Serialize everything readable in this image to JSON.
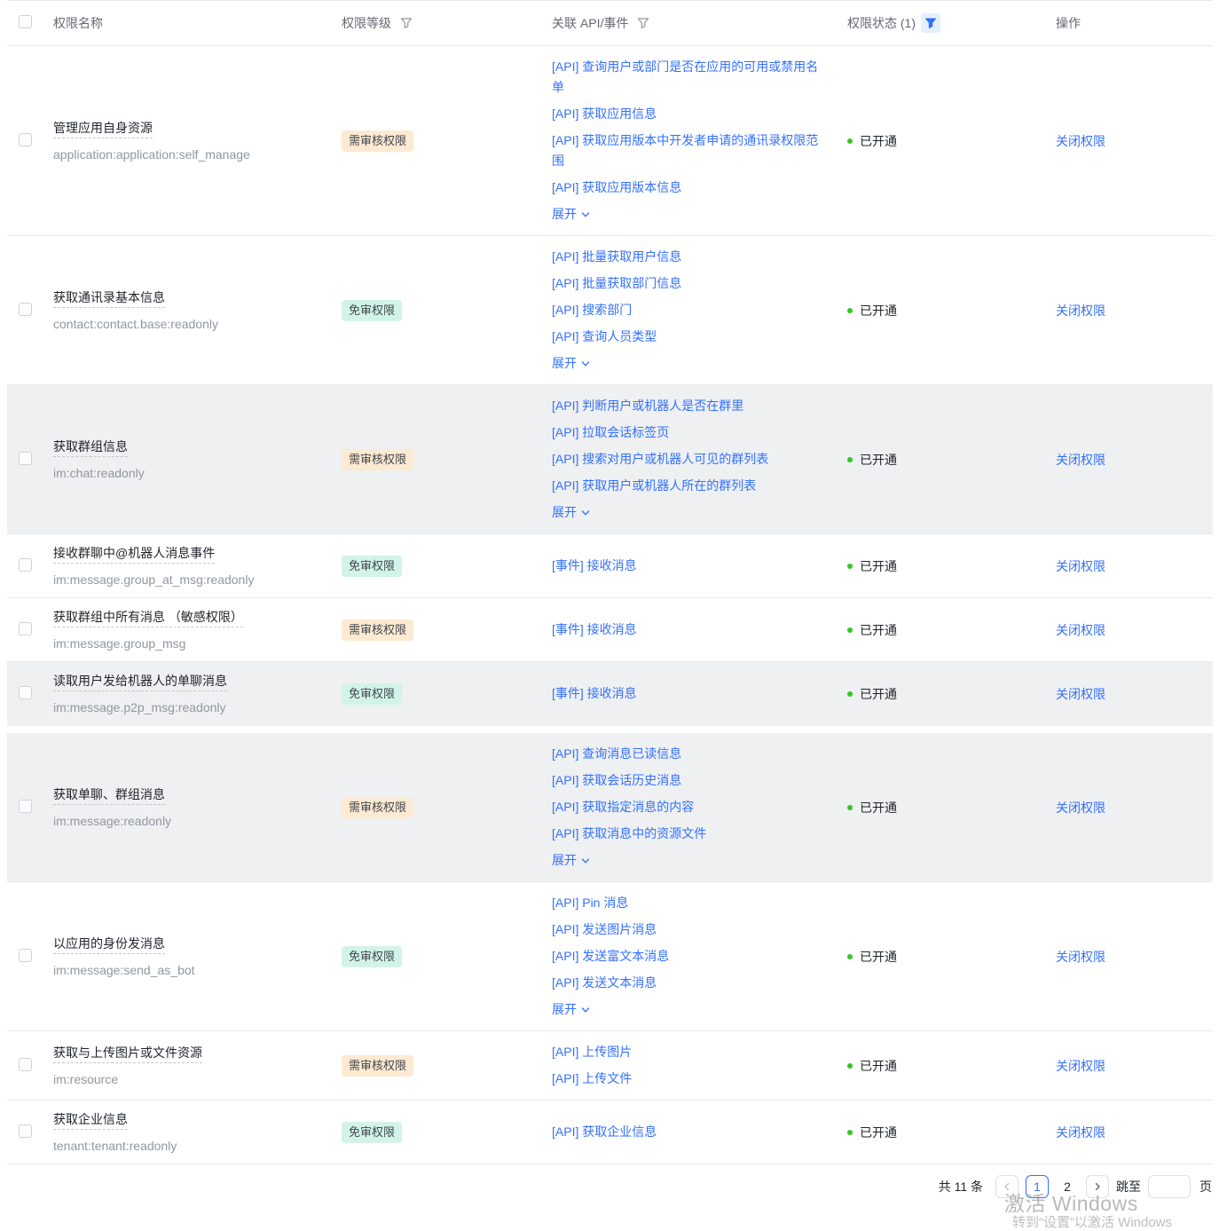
{
  "colors": {
    "accent": "#3370ff",
    "status_open_green": "#34c724",
    "badge": {
      "review": "#fdead2",
      "free": "#d2f4e8"
    },
    "shaded_row_bg": "#eef0f2"
  },
  "icons": {
    "filter": "funnel-icon",
    "expand": "chevron-down-icon",
    "prev": "chevron-left-icon",
    "next": "chevron-right-icon"
  },
  "table": {
    "headers": {
      "name": "权限名称",
      "level": "权限等级",
      "api": "关联 API/事件",
      "status": "权限状态 (1)",
      "action": "操作"
    },
    "expand_label": "展开",
    "rows": [
      {
        "name": "管理应用自身资源",
        "code": "application:application:self_manage",
        "level": "需审核权限",
        "level_type": "review",
        "apis": [
          "[API] 查询用户或部门是否在应用的可用或禁用名单",
          "[API] 获取应用信息",
          "[API] 获取应用版本中开发者申请的通讯录权限范围",
          "[API] 获取应用版本信息"
        ],
        "expandable": true,
        "status": "已开通",
        "action": "关闭权限",
        "shaded": false
      },
      {
        "name": "获取通讯录基本信息",
        "code": "contact:contact.base:readonly",
        "level": "免审权限",
        "level_type": "free",
        "apis": [
          "[API] 批量获取用户信息",
          "[API] 批量获取部门信息",
          "[API] 搜索部门",
          "[API] 查询人员类型"
        ],
        "expandable": true,
        "status": "已开通",
        "action": "关闭权限",
        "shaded": false
      },
      {
        "name": "获取群组信息",
        "code": "im:chat:readonly",
        "level": "需审核权限",
        "level_type": "review",
        "apis": [
          "[API] 判断用户或机器人是否在群里",
          "[API] 拉取会话标签页",
          "[API] 搜索对用户或机器人可见的群列表",
          "[API] 获取用户或机器人所在的群列表"
        ],
        "expandable": true,
        "status": "已开通",
        "action": "关闭权限",
        "shaded": true
      },
      {
        "name": "接收群聊中@机器人消息事件",
        "code": "im:message.group_at_msg:readonly",
        "level": "免审权限",
        "level_type": "free",
        "apis": [
          "[事件] 接收消息"
        ],
        "expandable": false,
        "status": "已开通",
        "action": "关闭权限",
        "shaded": false
      },
      {
        "name": "获取群组中所有消息 （敏感权限）",
        "code": "im:message.group_msg",
        "level": "需审核权限",
        "level_type": "review",
        "apis": [
          "[事件] 接收消息"
        ],
        "expandable": false,
        "status": "已开通",
        "action": "关闭权限",
        "shaded": false
      },
      {
        "name": "读取用户发给机器人的单聊消息",
        "code": "im:message.p2p_msg:readonly",
        "level": "免审权限",
        "level_type": "free",
        "apis": [
          "[事件] 接收消息"
        ],
        "expandable": false,
        "status": "已开通",
        "action": "关闭权限",
        "shaded": true
      },
      {
        "name": "获取单聊、群组消息",
        "code": "im:message:readonly",
        "level": "需审核权限",
        "level_type": "review",
        "apis": [
          "[API] 查询消息已读信息",
          "[API] 获取会话历史消息",
          "[API] 获取指定消息的内容",
          "[API] 获取消息中的资源文件"
        ],
        "expandable": true,
        "status": "已开通",
        "action": "关闭权限",
        "shaded": true,
        "gap_before": true
      },
      {
        "name": "以应用的身份发消息",
        "code": "im:message:send_as_bot",
        "level": "免审权限",
        "level_type": "free",
        "apis": [
          "[API] Pin 消息",
          "[API] 发送图片消息",
          "[API] 发送富文本消息",
          "[API] 发送文本消息"
        ],
        "expandable": true,
        "status": "已开通",
        "action": "关闭权限",
        "shaded": false
      },
      {
        "name": "获取与上传图片或文件资源",
        "code": "im:resource",
        "level": "需审核权限",
        "level_type": "review",
        "apis": [
          "[API] 上传图片",
          "[API] 上传文件"
        ],
        "expandable": false,
        "status": "已开通",
        "action": "关闭权限",
        "shaded": false
      },
      {
        "name": "获取企业信息",
        "code": "tenant:tenant:readonly",
        "level": "免审权限",
        "level_type": "free",
        "apis": [
          "[API] 获取企业信息"
        ],
        "expandable": false,
        "status": "已开通",
        "action": "关闭权限",
        "shaded": false
      }
    ]
  },
  "pagination": {
    "total_label": "共 11 条",
    "pages": [
      "1",
      "2"
    ],
    "current_page": "1",
    "jump_label": "跳至",
    "jump_value": "",
    "page_unit": "页"
  },
  "watermark": {
    "line1": "激活 Windows",
    "line2": "转到“设置”以激活 Windows"
  }
}
